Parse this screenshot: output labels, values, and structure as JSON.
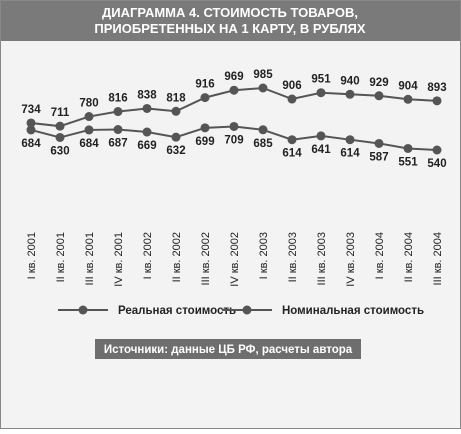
{
  "chart_data": {
    "type": "line",
    "title": [
      "ДИАГРАММА 4. СТОИМОСТЬ ТОВАРОВ,",
      "ПРИОБРЕТЕННЫХ НА 1 КАРТУ, В РУБЛЯХ"
    ],
    "categories": [
      "I кв. 2001",
      "II кв. 2001",
      "III кв. 2001",
      "IV кв. 2001",
      "I кв. 2002",
      "II кв. 2002",
      "III кв. 2002",
      "IV кв. 2002",
      "I кв. 2003",
      "II кв. 2003",
      "III кв. 2003",
      "IV кв. 2003",
      "I кв. 2004",
      "II кв. 2004",
      "III кв. 2004"
    ],
    "series": [
      {
        "name": "Реальная стоимость",
        "color": "#555555",
        "values": [
          684,
          630,
          684,
          687,
          669,
          632,
          699,
          709,
          685,
          614,
          641,
          614,
          587,
          551,
          540
        ]
      },
      {
        "name": "Номинальная стоимость",
        "color": "#555555",
        "values": [
          734,
          711,
          780,
          816,
          838,
          818,
          916,
          969,
          985,
          906,
          951,
          940,
          929,
          904,
          893
        ]
      }
    ],
    "source": "Источники: данные  ЦБ РФ, расчеты автора"
  }
}
